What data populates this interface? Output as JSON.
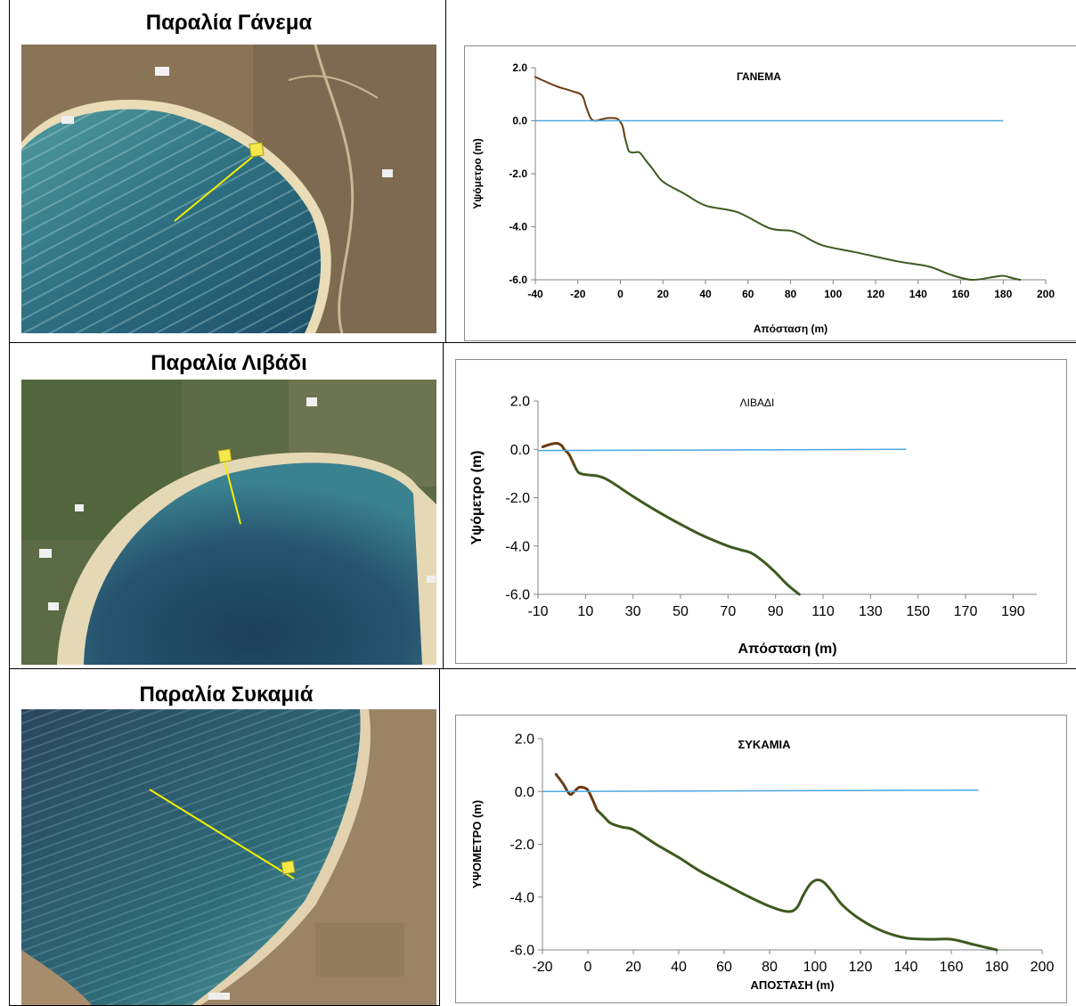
{
  "panels": [
    {
      "beach_title": "Παραλία Γάνεμα",
      "photo_icon": "aerial-photo-beach",
      "chart_data": {
        "type": "line",
        "title": "ΓΑΝΕΜΑ",
        "xlabel": "Απόσταση (m)",
        "ylabel": "Υψόμετρο (m)",
        "xlim": [
          -40,
          200
        ],
        "ylim": [
          -6.0,
          2.0
        ],
        "xticks": [
          "-40",
          "-20",
          "0",
          "20",
          "40",
          "60",
          "80",
          "100",
          "120",
          "140",
          "160",
          "180",
          "200"
        ],
        "yticks": [
          "2.0",
          "0.0",
          "-2.0",
          "-4.0",
          "-6.0"
        ],
        "grid": false,
        "legend": "none",
        "series": [
          {
            "color": "#3d5a1e",
            "upper_color": "#6b3a10",
            "x": [
              -40,
              -30,
              -22,
              -18,
              -16,
              -14,
              -12,
              -9,
              -6,
              -3,
              -1,
              1,
              2,
              3,
              4,
              6,
              9,
              12,
              15,
              20,
              30,
              40,
              55,
              70,
              80,
              85,
              95,
              110,
              130,
              145,
              155,
              165,
              175,
              180,
              185,
              188
            ],
            "y": [
              1.65,
              1.3,
              1.1,
              0.95,
              0.5,
              0.1,
              0.0,
              0.05,
              0.1,
              0.1,
              0.05,
              -0.2,
              -0.6,
              -0.9,
              -1.15,
              -1.2,
              -1.2,
              -1.5,
              -1.8,
              -2.3,
              -2.75,
              -3.2,
              -3.45,
              -4.05,
              -4.15,
              -4.3,
              -4.7,
              -4.95,
              -5.3,
              -5.5,
              -5.8,
              -6.0,
              -5.9,
              -5.85,
              -5.95,
              -6.0
            ]
          },
          {
            "color": "#4ba8e0",
            "x": [
              -40,
              180
            ],
            "y": [
              0.0,
              0.0
            ]
          }
        ]
      }
    },
    {
      "beach_title": "Παραλία Λιβάδι",
      "photo_icon": "aerial-photo-beach",
      "chart_data": {
        "type": "line",
        "title": "ΛΙΒΑΔΙ",
        "xlabel": "Απόσταση (m)",
        "ylabel": "Υψόμετρο (m)",
        "xlim": [
          -10,
          200
        ],
        "ylim": [
          -6.0,
          2.0
        ],
        "xticks": [
          "-10",
          "10",
          "30",
          "50",
          "70",
          "90",
          "110",
          "130",
          "150",
          "170",
          "190"
        ],
        "yticks": [
          "2.0",
          "0.0",
          "-2.0",
          "-4.0",
          "-6.0"
        ],
        "grid": false,
        "legend": "none",
        "series": [
          {
            "color": "#3d5a1e",
            "upper_color": "#6b3a10",
            "x": [
              -8,
              -5,
              -2,
              0,
              1,
              3,
              5,
              7,
              10,
              15,
              20,
              30,
              40,
              50,
              60,
              70,
              75,
              80,
              85,
              90,
              95,
              100
            ],
            "y": [
              0.1,
              0.2,
              0.25,
              0.15,
              0.0,
              -0.2,
              -0.6,
              -0.95,
              -1.05,
              -1.1,
              -1.3,
              -1.95,
              -2.55,
              -3.1,
              -3.6,
              -4.0,
              -4.15,
              -4.3,
              -4.65,
              -5.1,
              -5.6,
              -6.0
            ]
          },
          {
            "color": "#4ba8e0",
            "x": [
              -10,
              145
            ],
            "y": [
              -0.05,
              0.0
            ]
          }
        ]
      }
    },
    {
      "beach_title": "Παραλία Συκαμιά",
      "photo_icon": "aerial-photo-beach",
      "chart_data": {
        "type": "line",
        "title": "ΣΥΚΑΜΙΑ",
        "xlabel": "ΑΠΟΣΤΑΣΗ (m)",
        "ylabel": "ΥΨΟΜΕΤΡΟ (m)",
        "xlim": [
          -20,
          200
        ],
        "ylim": [
          -6.0,
          2.0
        ],
        "xticks": [
          "-20",
          "0",
          "20",
          "40",
          "60",
          "80",
          "100",
          "120",
          "140",
          "160",
          "180",
          "200"
        ],
        "yticks": [
          "2.0",
          "0.0",
          "-2.0",
          "-4.0",
          "-6.0"
        ],
        "grid": false,
        "legend": "none",
        "series": [
          {
            "color": "#3d5a1e",
            "upper_color": "#6b3a10",
            "x": [
              -14,
              -11,
              -8,
              -6,
              -4,
              -2,
              0,
              2,
              4,
              7,
              10,
              15,
              20,
              30,
              40,
              50,
              60,
              70,
              80,
              88,
              92,
              95,
              98,
              101,
              104,
              108,
              112,
              120,
              130,
              140,
              150,
              160,
              170,
              180
            ],
            "y": [
              0.65,
              0.3,
              -0.1,
              0.0,
              0.15,
              0.15,
              0.05,
              -0.3,
              -0.7,
              -0.95,
              -1.2,
              -1.35,
              -1.45,
              -2.0,
              -2.5,
              -3.05,
              -3.5,
              -3.95,
              -4.35,
              -4.55,
              -4.4,
              -3.9,
              -3.5,
              -3.35,
              -3.45,
              -3.85,
              -4.3,
              -4.85,
              -5.3,
              -5.55,
              -5.6,
              -5.6,
              -5.8,
              -6.0
            ]
          },
          {
            "color": "#4ba8e0",
            "x": [
              -20,
              172
            ],
            "y": [
              0.0,
              0.05
            ]
          }
        ]
      }
    }
  ]
}
